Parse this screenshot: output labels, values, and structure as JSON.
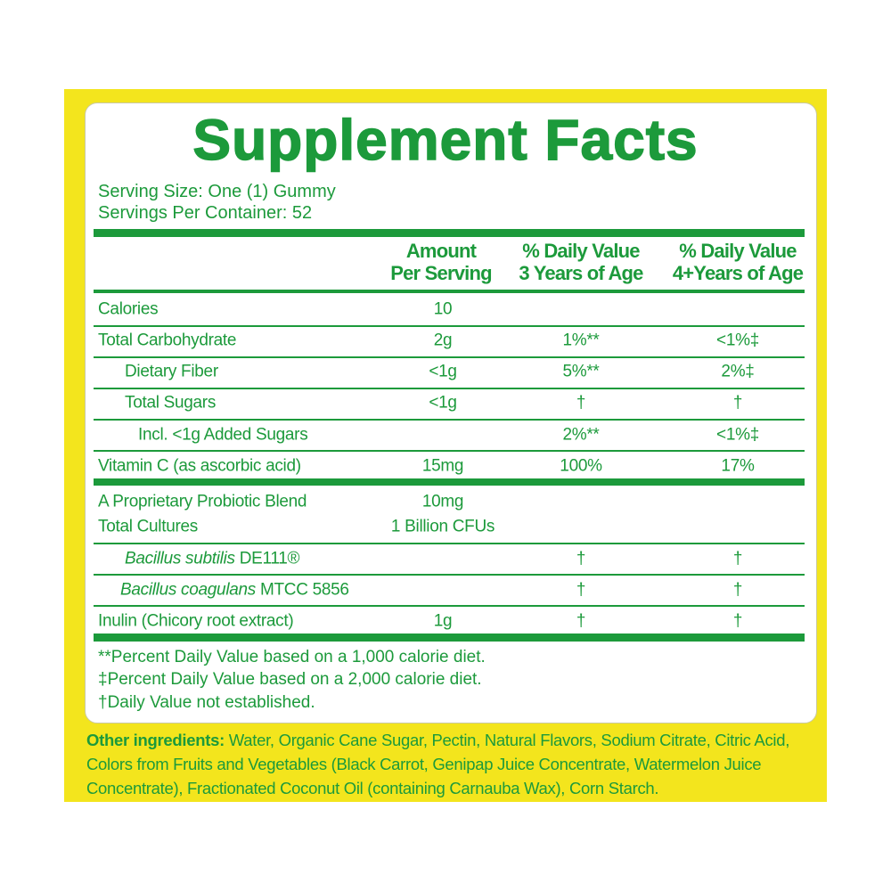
{
  "title": "Supplement Facts",
  "serving": [
    "Serving Size: One (1) Gummy",
    "Servings Per Container: 52"
  ],
  "columns": [
    [
      "Amount",
      "Per Serving"
    ],
    [
      "% Daily Value",
      "3 Years of Age"
    ],
    [
      "% Daily Value",
      "4+Years of Age"
    ]
  ],
  "rows": [
    {
      "name": "Calories",
      "amount": "10"
    },
    {
      "name": "Total Carbohydrate",
      "amount": "2g",
      "dv3": "1%**",
      "dv4": "<1%‡"
    },
    {
      "name": "Dietary Fiber",
      "amount": "<1g",
      "dv3": "5%**",
      "dv4": "2%‡"
    },
    {
      "name": "Total Sugars",
      "amount": "<1g",
      "dv3": "†",
      "dv4": "†"
    },
    {
      "name": "Incl. <1g Added Sugars",
      "dv3": "2%**",
      "dv4": "<1%‡"
    },
    {
      "name": "Vitamin C (as ascorbic acid)",
      "amount": "15mg",
      "dv3": "100%",
      "dv4": "17%"
    },
    {
      "name": "A Proprietary Probiotic Blend",
      "amount": "10mg"
    },
    {
      "name": "Total Cultures",
      "amount": "1 Billion CFUs"
    },
    {
      "name_italic": "Bacillus subtilis",
      "name": "DE111®",
      "dv3": "†",
      "dv4": "†"
    },
    {
      "name_italic": "Bacillus coagulans",
      "name": "MTCC 5856",
      "dv3": "†",
      "dv4": "†"
    },
    {
      "name": "Inulin (Chicory root extract)",
      "amount": "1g",
      "dv3": "†",
      "dv4": "†"
    }
  ],
  "footnotes": [
    "**Percent Daily Value based on a 1,000 calorie diet.",
    "‡Percent Daily Value based on a 2,000 calorie diet.",
    "†Daily Value not established."
  ],
  "other_ingredients": {
    "label": "Other ingredients:",
    "text": "Water, Organic Cane Sugar, Pectin, Natural Flavors, Sodium Citrate, Citric Acid, Colors from Fruits and Vegetables (Black Carrot, Genipap Juice Concentrate, Watermelon Juice Concentrate), Fractionated Coconut Oil (containing Carnauba Wax), Corn Starch."
  }
}
